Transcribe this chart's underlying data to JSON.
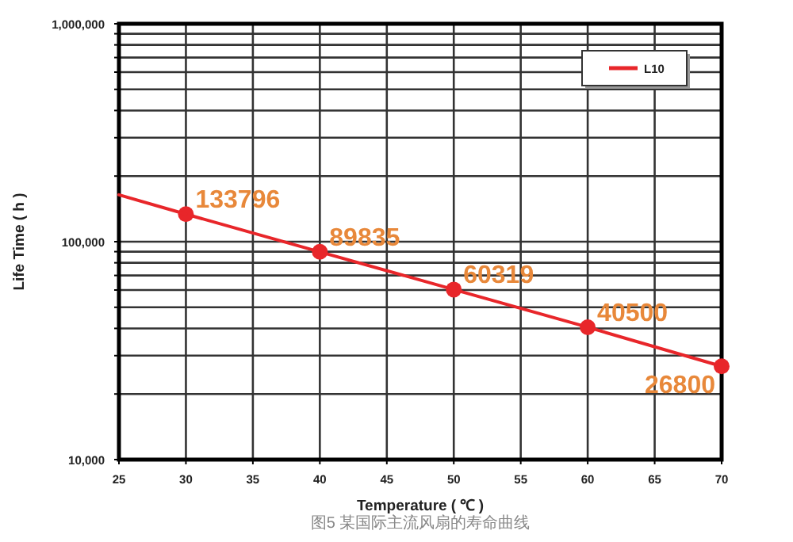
{
  "chart_data": {
    "type": "line",
    "xlabel": "Temperature ( ℃ )",
    "ylabel": "Life Time ( h )",
    "annotations": [
      "图5 某国际主流风扇的寿命曲线"
    ],
    "log": "y",
    "grid": true,
    "legend": "top right",
    "marker": "circle",
    "line_style": "solid",
    "xlim": [
      25,
      70
    ],
    "xticks": [
      25,
      30,
      35,
      40,
      45,
      50,
      55,
      60,
      65,
      70
    ],
    "ylim": [
      10000,
      1000000
    ],
    "yticks": [
      {
        "value": 10000,
        "label": "10,000"
      },
      {
        "value": 20000,
        "label": null
      },
      {
        "value": 30000,
        "label": null
      },
      {
        "value": 40000,
        "label": null
      },
      {
        "value": 50000,
        "label": null
      },
      {
        "value": 60000,
        "label": null
      },
      {
        "value": 70000,
        "label": null
      },
      {
        "value": 80000,
        "label": null
      },
      {
        "value": 90000,
        "label": null
      },
      {
        "value": 100000,
        "label": "100,000"
      },
      {
        "value": 200000,
        "label": null
      },
      {
        "value": 300000,
        "label": null
      },
      {
        "value": 400000,
        "label": null
      },
      {
        "value": 500000,
        "label": null
      },
      {
        "value": 600000,
        "label": null
      },
      {
        "value": 700000,
        "label": null
      },
      {
        "value": 800000,
        "label": null
      },
      {
        "value": 900000,
        "label": null
      },
      {
        "value": 1000000,
        "label": "1,000,000"
      }
    ],
    "series": [
      {
        "name": "L10",
        "color": "#e8262a",
        "x": [
          30,
          40,
          50,
          60,
          70
        ],
        "values": [
          133796,
          89835,
          60319,
          40500,
          26800
        ],
        "value_labels": [
          "133796",
          "89835",
          "60319",
          "40500",
          "26800"
        ]
      },
      {
        "type": "line",
        "marker": "none",
        "color": "#e8262a",
        "x": [
          25,
          30
        ],
        "values": [
          164000,
          133796
        ]
      }
    ]
  }
}
